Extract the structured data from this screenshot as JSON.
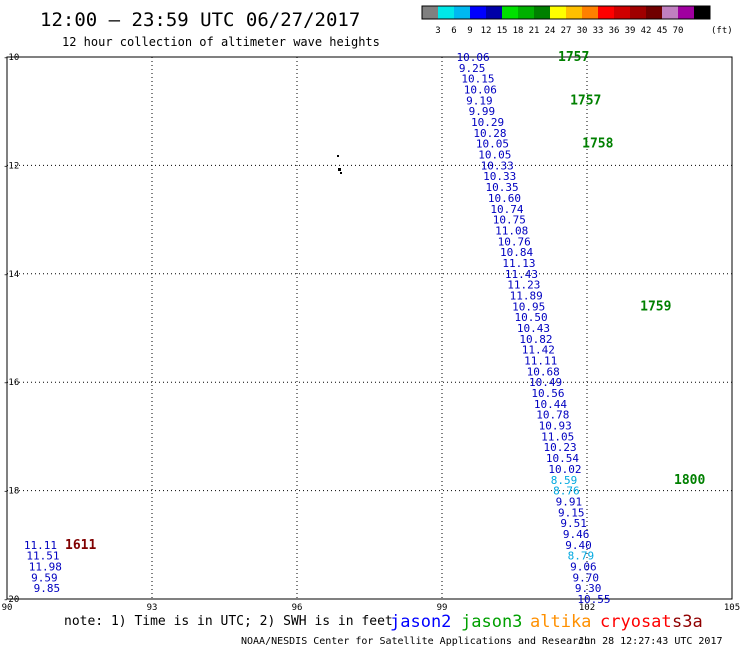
{
  "header": {
    "title": "12:00 – 23:59 UTC 06/27/2017",
    "subtitle": "12 hour collection of altimeter wave heights"
  },
  "scale": {
    "colors": [
      "#808080",
      "#00e8e8",
      "#00b8f0",
      "#0000ff",
      "#0000a8",
      "#00e000",
      "#00b000",
      "#008000",
      "#ffff00",
      "#ffc000",
      "#ff8000",
      "#ff0000",
      "#d00000",
      "#a00000",
      "#700000",
      "#c080c0",
      "#a000a0",
      "#000000"
    ],
    "labels": [
      "3",
      "6",
      "9",
      "12",
      "15",
      "18",
      "21",
      "24",
      "27",
      "30",
      "33",
      "36",
      "39",
      "42",
      "45",
      "70"
    ],
    "unit": "(ft)"
  },
  "axes": {
    "x_ticks": [
      "90",
      "93",
      "96",
      "99",
      "102",
      "105"
    ],
    "y_ticks": [
      "-10",
      "-12",
      "-14",
      "-16",
      "-18",
      "-20"
    ]
  },
  "track_main": {
    "color": "#0000c0",
    "highlight_color": "#00a8e0",
    "points": [
      {
        "lon": 99.3,
        "lat": -10.0,
        "v": "10.06"
      },
      {
        "lon": 99.35,
        "lat": -10.2,
        "v": "9.25"
      },
      {
        "lon": 99.4,
        "lat": -10.4,
        "v": "10.15"
      },
      {
        "lon": 99.45,
        "lat": -10.6,
        "v": "10.06"
      },
      {
        "lon": 99.5,
        "lat": -10.8,
        "v": "9.19"
      },
      {
        "lon": 99.55,
        "lat": -11.0,
        "v": "9.99"
      },
      {
        "lon": 99.6,
        "lat": -11.2,
        "v": "10.29"
      },
      {
        "lon": 99.65,
        "lat": -11.4,
        "v": "10.28"
      },
      {
        "lon": 99.7,
        "lat": -11.6,
        "v": "10.05"
      },
      {
        "lon": 99.75,
        "lat": -11.8,
        "v": "10.05"
      },
      {
        "lon": 99.8,
        "lat": -12.0,
        "v": "10.33"
      },
      {
        "lon": 99.85,
        "lat": -12.2,
        "v": "10.33"
      },
      {
        "lon": 99.9,
        "lat": -12.4,
        "v": "10.35"
      },
      {
        "lon": 99.95,
        "lat": -12.6,
        "v": "10.60"
      },
      {
        "lon": 100.0,
        "lat": -12.8,
        "v": "10.74"
      },
      {
        "lon": 100.05,
        "lat": -13.0,
        "v": "10.75"
      },
      {
        "lon": 100.1,
        "lat": -13.2,
        "v": "11.08"
      },
      {
        "lon": 100.15,
        "lat": -13.4,
        "v": "10.76"
      },
      {
        "lon": 100.2,
        "lat": -13.6,
        "v": "10.84"
      },
      {
        "lon": 100.25,
        "lat": -13.8,
        "v": "11.13"
      },
      {
        "lon": 100.3,
        "lat": -14.0,
        "v": "11.43"
      },
      {
        "lon": 100.35,
        "lat": -14.2,
        "v": "11.23"
      },
      {
        "lon": 100.4,
        "lat": -14.4,
        "v": "11.89"
      },
      {
        "lon": 100.45,
        "lat": -14.6,
        "v": "10.95"
      },
      {
        "lon": 100.5,
        "lat": -14.8,
        "v": "10.50"
      },
      {
        "lon": 100.55,
        "lat": -15.0,
        "v": "10.43"
      },
      {
        "lon": 100.6,
        "lat": -15.2,
        "v": "10.82"
      },
      {
        "lon": 100.65,
        "lat": -15.4,
        "v": "11.42"
      },
      {
        "lon": 100.7,
        "lat": -15.6,
        "v": "11.11"
      },
      {
        "lon": 100.75,
        "lat": -15.8,
        "v": "10.68"
      },
      {
        "lon": 100.8,
        "lat": -16.0,
        "v": "10.49"
      },
      {
        "lon": 100.85,
        "lat": -16.2,
        "v": "10.56"
      },
      {
        "lon": 100.9,
        "lat": -16.4,
        "v": "10.44"
      },
      {
        "lon": 100.95,
        "lat": -16.6,
        "v": "10.78"
      },
      {
        "lon": 101.0,
        "lat": -16.8,
        "v": "10.93"
      },
      {
        "lon": 101.05,
        "lat": -17.0,
        "v": "11.05"
      },
      {
        "lon": 101.1,
        "lat": -17.2,
        "v": "10.23"
      },
      {
        "lon": 101.15,
        "lat": -17.4,
        "v": "10.54"
      },
      {
        "lon": 101.2,
        "lat": -17.6,
        "v": "10.02"
      },
      {
        "lon": 101.25,
        "lat": -17.8,
        "v": "8.59",
        "hl": true
      },
      {
        "lon": 101.3,
        "lat": -18.0,
        "v": "8.76",
        "hl": true
      },
      {
        "lon": 101.35,
        "lat": -18.2,
        "v": "9.91"
      },
      {
        "lon": 101.4,
        "lat": -18.4,
        "v": "9.15"
      },
      {
        "lon": 101.45,
        "lat": -18.6,
        "v": "9.51"
      },
      {
        "lon": 101.5,
        "lat": -18.8,
        "v": "9.46"
      },
      {
        "lon": 101.55,
        "lat": -19.0,
        "v": "9.40"
      },
      {
        "lon": 101.6,
        "lat": -19.2,
        "v": "8.79",
        "hl": true
      },
      {
        "lon": 101.65,
        "lat": -19.4,
        "v": "9.06"
      },
      {
        "lon": 101.7,
        "lat": -19.6,
        "v": "9.70"
      },
      {
        "lon": 101.75,
        "lat": -19.8,
        "v": "9.30"
      },
      {
        "lon": 101.8,
        "lat": -20.0,
        "v": "10.55"
      }
    ],
    "times": [
      {
        "lon": 101.4,
        "lat": -10.0,
        "t": "1757"
      },
      {
        "lon": 101.65,
        "lat": -10.8,
        "t": "1757"
      },
      {
        "lon": 101.9,
        "lat": -11.6,
        "t": "1758"
      },
      {
        "lon": 103.1,
        "lat": -14.6,
        "t": "1759"
      },
      {
        "lon": 103.8,
        "lat": -17.8,
        "t": "1800"
      }
    ],
    "time_color": "#008000"
  },
  "track_west": {
    "color": "#0000c0",
    "points": [
      {
        "lon": 90.35,
        "lat": -19.0,
        "v": "11.11"
      },
      {
        "lon": 90.4,
        "lat": -19.2,
        "v": "11.51"
      },
      {
        "lon": 90.45,
        "lat": -19.4,
        "v": "11.98"
      },
      {
        "lon": 90.5,
        "lat": -19.6,
        "v": "9.59"
      },
      {
        "lon": 90.55,
        "lat": -19.8,
        "v": "9.85"
      }
    ],
    "times": [
      {
        "lon": 91.2,
        "lat": -19.0,
        "t": "1611"
      }
    ],
    "time_color": "#800000"
  },
  "legend": {
    "note": "note: 1) Time is in UTC; 2) SWH is in feet",
    "satellites": [
      {
        "name": "jason2",
        "color": "#0000ff"
      },
      {
        "name": "jason3",
        "color": "#00a000"
      },
      {
        "name": "altika",
        "color": "#ff9000"
      },
      {
        "name": "cryosat",
        "color": "#ff0000"
      },
      {
        "name": "s3a",
        "color": "#900000"
      }
    ]
  },
  "footer": {
    "agency": "NOAA/NESDIS Center for Satellite Applications and Research",
    "timestamp": "Jun 28 12:27:43 UTC 2017"
  }
}
